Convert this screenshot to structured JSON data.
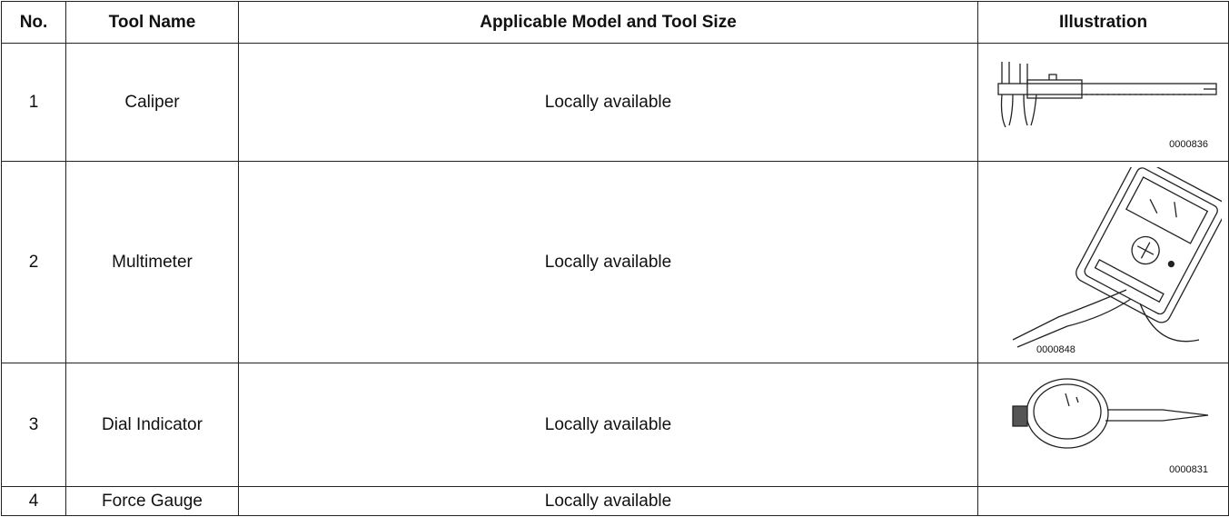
{
  "table": {
    "header": [
      "No.",
      "Tool Name",
      "Applicable Model and Tool Size",
      "Illustration"
    ],
    "rows": [
      {
        "no": "1",
        "name": "Caliper",
        "size": "Locally available",
        "code": "0000836"
      },
      {
        "no": "2",
        "name": "Multimeter",
        "size": "Locally available",
        "code": "0000848"
      },
      {
        "no": "3",
        "name": "Dial Indicator",
        "size": "Locally available",
        "code": "0000831"
      },
      {
        "no": "4",
        "name": "Force Gauge",
        "size": "Locally available"
      }
    ]
  }
}
